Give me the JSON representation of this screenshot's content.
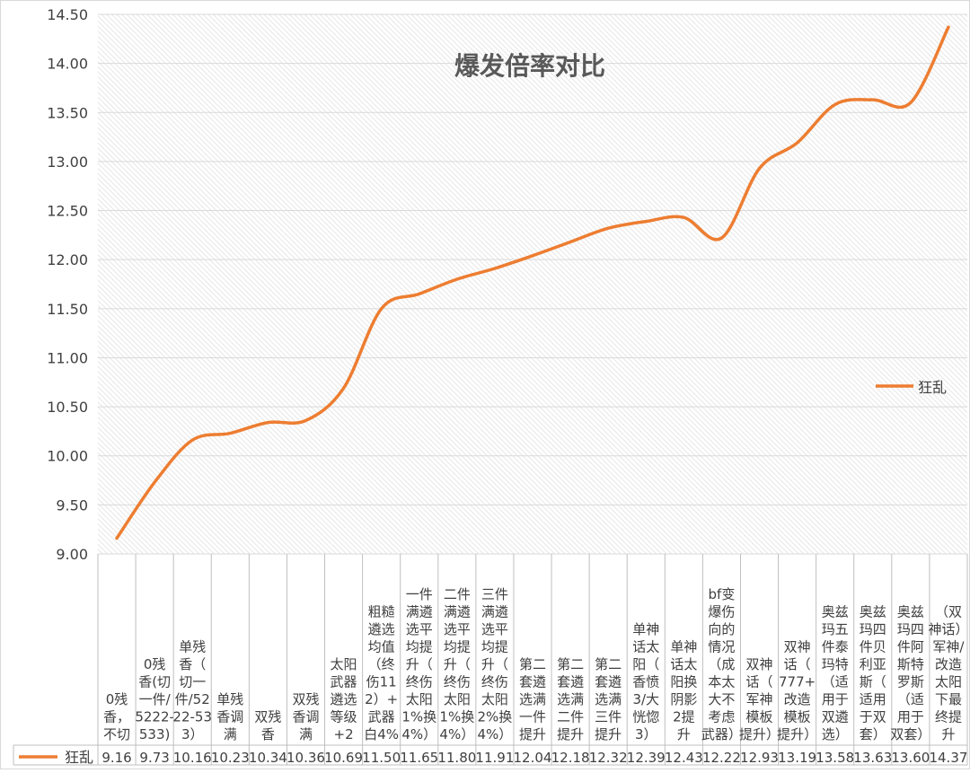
{
  "chart_data": {
    "type": "line",
    "title": "爆发倍率对比",
    "ylim": [
      9.0,
      14.5
    ],
    "y_ticks": [
      "9.00",
      "9.50",
      "10.00",
      "10.50",
      "11.00",
      "11.50",
      "12.00",
      "12.50",
      "13.00",
      "13.50",
      "14.00",
      "14.50"
    ],
    "grid": true,
    "legend_position": "right",
    "categories": [
      "0残香，不切",
      "0残香(切一件/5222-533)",
      "单残香（切一件/5222-533）",
      "单残香调满",
      "双残香",
      "双残香调满",
      "太阳武器遴选等级+2",
      "粗糙遴选均值（终伤112）+武器白4%",
      "一件满遴选平均提升（终伤太阳1%换4%）",
      "二件满遴选平均提升（终伤太阳1%换4%）",
      "三件满遴选平均提升（终伤太阳2%换4%）",
      "第二套遴选满一件提升",
      "第二套遴选满二件提升",
      "第二套遴选满三件提升",
      "单神话太阳（香愤3/大恍惚3）",
      "单神话太阳换阴影2提升",
      "bf变爆伤向的情况（成本太大不考虑武器）",
      "双神话（军神模板提升）",
      "双神话（777+改造模板提升）",
      "奥兹玛五件泰玛特（适用于双遴选）",
      "奥兹玛四件贝利亚斯（适用于双套）",
      "奥兹玛四件阿斯特罗斯（适用于双套）",
      "（双神话）军神/改造太阳下最终提升"
    ],
    "category_lines": [
      [
        "0残",
        "香，",
        "不切"
      ],
      [
        "0残",
        "香(切",
        "一件/",
        "5222-",
        "533)"
      ],
      [
        "单残",
        "香（",
        "切一",
        "件/52",
        "22-53",
        "3）"
      ],
      [
        "单残",
        "香调",
        "满"
      ],
      [
        "双残",
        "香"
      ],
      [
        "双残",
        "香调",
        "满"
      ],
      [
        "太阳",
        "武器",
        "遴选",
        "等级",
        "+2"
      ],
      [
        "粗糙",
        "遴选",
        "均值",
        "（终",
        "伤11",
        "2）+",
        "武器",
        "白4%"
      ],
      [
        "一件",
        "满遴",
        "选平",
        "均提",
        "升（",
        "终伤",
        "太阳",
        "1%换",
        "4%）"
      ],
      [
        "二件",
        "满遴",
        "选平",
        "均提",
        "升（",
        "终伤",
        "太阳",
        "1%换",
        "4%）"
      ],
      [
        "三件",
        "满遴",
        "选平",
        "均提",
        "升（",
        "终伤",
        "太阳",
        "2%换",
        "4%）"
      ],
      [
        "第二",
        "套遴",
        "选满",
        "一件",
        "提升"
      ],
      [
        "第二",
        "套遴",
        "选满",
        "二件",
        "提升"
      ],
      [
        "第二",
        "套遴",
        "选满",
        "三件",
        "提升"
      ],
      [
        "单神",
        "话太",
        "阳（",
        "香愤",
        "3/大",
        "恍惚",
        "3）"
      ],
      [
        "单神",
        "话太",
        "阳换",
        "阴影",
        "2提",
        "升"
      ],
      [
        "bf变",
        "爆伤",
        "向的",
        "情况",
        "（成",
        "本太",
        "大不",
        "考虑",
        "武器）"
      ],
      [
        "双神",
        "话（",
        "军神",
        "模板",
        "提升）"
      ],
      [
        "双神",
        "话（",
        "777+",
        "改造",
        "模板",
        "提升）"
      ],
      [
        "奥兹",
        "玛五",
        "件泰",
        "玛特",
        "（适",
        "用于",
        "双遴",
        "选）"
      ],
      [
        "奥兹",
        "玛四",
        "件贝",
        "利亚",
        "斯（",
        "适用",
        "于双",
        "套）"
      ],
      [
        "奥兹",
        "玛四",
        "件阿",
        "斯特",
        "罗斯",
        "（适",
        "用于",
        "双套）"
      ],
      [
        "（双",
        "神话）",
        "军神/",
        "改造",
        "太阳",
        "下最",
        "终提",
        "升"
      ]
    ],
    "series": [
      {
        "name": "狂乱",
        "color": "#ED7D31",
        "value_labels": [
          "9.16",
          "9.73",
          "10.16",
          "10.23",
          "10.34",
          "10.36",
          "10.69",
          "11.50",
          "11.65",
          "11.80",
          "11.91",
          "12.04",
          "12.18",
          "12.32",
          "12.39",
          "12.43",
          "12.22",
          "12.93",
          "13.19",
          "13.58",
          "13.63",
          "13.60",
          "14.37"
        ],
        "values": [
          9.16,
          9.73,
          10.16,
          10.23,
          10.34,
          10.36,
          10.69,
          11.5,
          11.65,
          11.8,
          11.91,
          12.04,
          12.18,
          12.32,
          12.39,
          12.43,
          12.22,
          12.93,
          13.19,
          13.58,
          13.63,
          13.6,
          14.37
        ]
      }
    ]
  }
}
